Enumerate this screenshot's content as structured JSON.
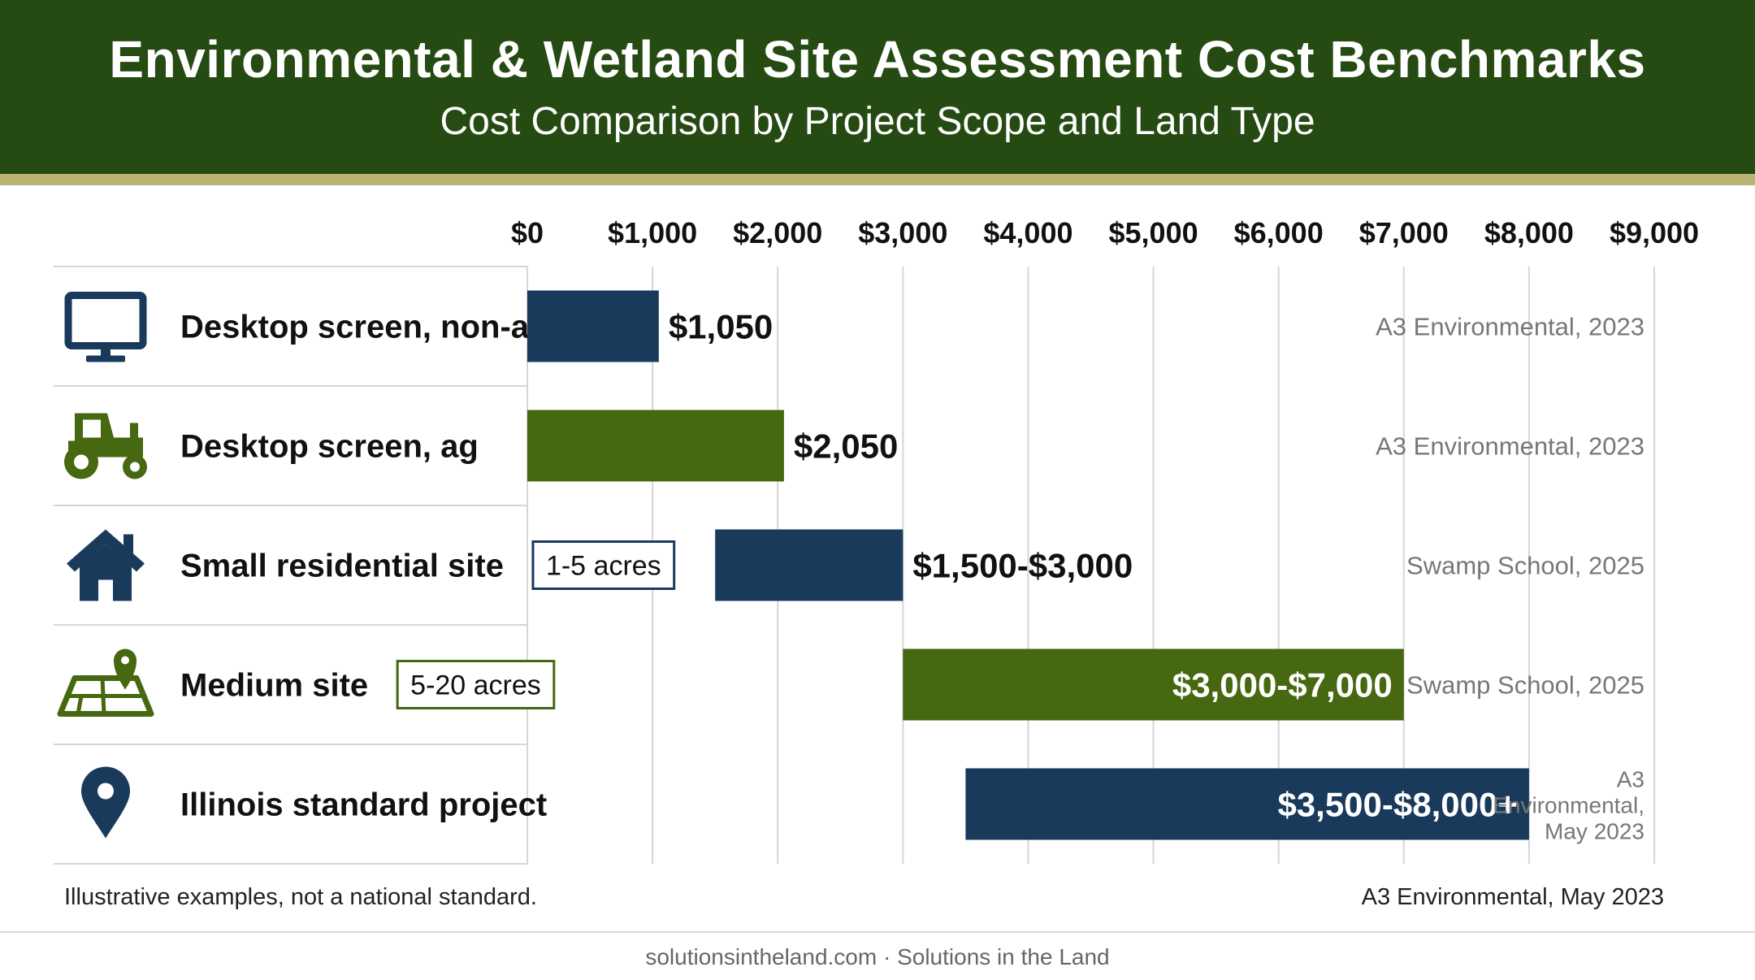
{
  "header": {
    "title": "Environmental & Wetland Site Assessment Cost Benchmarks",
    "subtitle": "Cost Comparison by Project Scope and Land Type"
  },
  "colors": {
    "navy": "#1a3a5c",
    "green": "#466810",
    "header_bg": "#254a12",
    "header_stripe": "#b9b471"
  },
  "chart_data": {
    "type": "bar",
    "orientation": "horizontal",
    "title": "Environmental & Wetland Site Assessment Cost Benchmarks",
    "subtitle": "Cost Comparison by Project Scope and Land Type",
    "xlim": [
      0,
      9000
    ],
    "grid": true,
    "x_ticks": [
      0,
      1000,
      2000,
      3000,
      4000,
      5000,
      6000,
      7000,
      8000,
      9000
    ],
    "x_tick_labels": [
      "$0",
      "$1,000",
      "$2,000",
      "$3,000",
      "$4,000",
      "$5,000",
      "$6,000",
      "$7,000",
      "$8,000",
      "$9,000"
    ],
    "rows": [
      {
        "category": "Desktop screen, non-ag",
        "icon": "monitor-icon",
        "tag": "",
        "low": 0,
        "high": 1050,
        "value_label": "$1,050",
        "label_inside": false,
        "color": "#1a3a5c",
        "source": [
          "A3 Environmental, 2023"
        ]
      },
      {
        "category": "Desktop screen, ag",
        "icon": "tractor-icon",
        "tag": "",
        "low": 0,
        "high": 2050,
        "value_label": "$2,050",
        "label_inside": false,
        "color": "#466810",
        "source": [
          "A3 Environmental, 2023"
        ]
      },
      {
        "category": "Small residential site",
        "icon": "house-icon",
        "tag": "1-5 acres",
        "low": 1500,
        "high": 3000,
        "value_label": "$1,500-$3,000",
        "label_inside": false,
        "color": "#1a3a5c",
        "source": [
          "Swamp School, 2025"
        ]
      },
      {
        "category": "Medium site",
        "icon": "site-map-icon",
        "tag": "5-20 acres",
        "low": 3000,
        "high": 7000,
        "value_label": "$3,000-$7,000",
        "label_inside": true,
        "color": "#466810",
        "source": [
          "Swamp School, 2025"
        ]
      },
      {
        "category": "Illinois standard project",
        "icon": "location-pin-icon",
        "tag": "",
        "low": 3500,
        "high": 8000,
        "value_label": "$3,500-$8,000+",
        "label_inside": true,
        "color": "#1a3a5c",
        "source": [
          "A3",
          "Environmental,",
          "May 2023"
        ]
      }
    ]
  },
  "notes": {
    "left": "Illustrative examples, not a national standard.",
    "right": "A3 Environmental, May 2023"
  },
  "footer": {
    "text": "solutionsintheland.com · Solutions in the Land"
  }
}
